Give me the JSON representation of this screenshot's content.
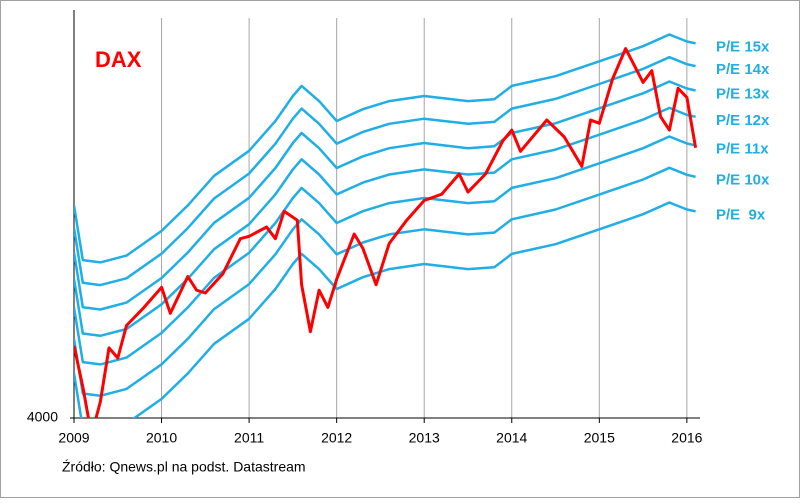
{
  "chart_data": {
    "type": "line",
    "title": "DAX",
    "source": "Źródło: Qnews.pl na podst. Datastream",
    "log_scale": true,
    "grid": "x",
    "xlim": [
      2009,
      2016.15
    ],
    "xticks": [
      2009,
      2010,
      2011,
      2012,
      2013,
      2014,
      2015,
      2016
    ],
    "ylim": [
      4000,
      13500
    ],
    "yticks": [
      4000
    ],
    "series": [
      {
        "name": "P/E 15x",
        "color": "#20aee6",
        "x": [
          2009.0,
          2009.1,
          2009.3,
          2009.6,
          2010.0,
          2010.3,
          2010.6,
          2011.0,
          2011.3,
          2011.5,
          2011.6,
          2011.8,
          2012.0,
          2012.3,
          2012.6,
          2013.0,
          2013.5,
          2013.8,
          2014.0,
          2014.5,
          2015.0,
          2015.5,
          2015.8,
          2016.0,
          2016.1
        ],
        "values": [
          7635,
          6465,
          6420,
          6555,
          7065,
          7635,
          8355,
          9015,
          9870,
          10650,
          10980,
          10485,
          9870,
          10230,
          10485,
          10650,
          10485,
          10545,
          10980,
          11310,
          11835,
          12390,
          12840,
          12570,
          12495
        ]
      },
      {
        "name": "P/E 14x",
        "color": "#20aee6",
        "x": [
          2009.0,
          2009.1,
          2009.3,
          2009.6,
          2010.0,
          2010.3,
          2010.6,
          2011.0,
          2011.3,
          2011.5,
          2011.6,
          2011.8,
          2012.0,
          2012.3,
          2012.6,
          2013.0,
          2013.5,
          2013.8,
          2014.0,
          2014.5,
          2015.0,
          2015.5,
          2015.8,
          2016.0,
          2016.1
        ],
        "values": [
          7126,
          6034,
          5992,
          6118,
          6594,
          7126,
          7798,
          8414,
          9212,
          9940,
          10248,
          9786,
          9212,
          9548,
          9786,
          9940,
          9786,
          9842,
          10248,
          10556,
          11046,
          11564,
          11984,
          11732,
          11662
        ]
      },
      {
        "name": "P/E 13x",
        "color": "#20aee6",
        "x": [
          2009.0,
          2009.1,
          2009.3,
          2009.6,
          2010.0,
          2010.3,
          2010.6,
          2011.0,
          2011.3,
          2011.5,
          2011.6,
          2011.8,
          2012.0,
          2012.3,
          2012.6,
          2013.0,
          2013.5,
          2013.8,
          2014.0,
          2014.5,
          2015.0,
          2015.5,
          2015.8,
          2016.0,
          2016.1
        ],
        "values": [
          6617,
          5603,
          5564,
          5681,
          6123,
          6617,
          7241,
          7813,
          8554,
          9230,
          9516,
          9087,
          8554,
          8866,
          9087,
          9230,
          9087,
          9139,
          9516,
          9802,
          10257,
          10738,
          11128,
          10894,
          10829
        ]
      },
      {
        "name": "P/E 12x",
        "color": "#20aee6",
        "x": [
          2009.0,
          2009.1,
          2009.3,
          2009.6,
          2010.0,
          2010.3,
          2010.6,
          2011.0,
          2011.3,
          2011.5,
          2011.6,
          2011.8,
          2012.0,
          2012.3,
          2012.6,
          2013.0,
          2013.5,
          2013.8,
          2014.0,
          2014.5,
          2015.0,
          2015.5,
          2015.8,
          2016.0,
          2016.1
        ],
        "values": [
          6108,
          5172,
          5136,
          5244,
          5652,
          6108,
          6684,
          7212,
          7896,
          8520,
          8784,
          8388,
          7896,
          8184,
          8388,
          8520,
          8388,
          8436,
          8784,
          9048,
          9468,
          9912,
          10272,
          10056,
          9996
        ]
      },
      {
        "name": "P/E 11x",
        "color": "#20aee6",
        "x": [
          2009.0,
          2009.1,
          2009.3,
          2009.6,
          2010.0,
          2010.3,
          2010.6,
          2011.0,
          2011.3,
          2011.5,
          2011.6,
          2011.8,
          2012.0,
          2012.3,
          2012.6,
          2013.0,
          2013.5,
          2013.8,
          2014.0,
          2014.5,
          2015.0,
          2015.5,
          2015.8,
          2016.0,
          2016.1
        ],
        "values": [
          5599,
          4741,
          4708,
          4807,
          5181,
          5599,
          6127,
          6611,
          7238,
          7810,
          8052,
          7689,
          7238,
          7502,
          7689,
          7810,
          7689,
          7733,
          8052,
          8294,
          8679,
          9086,
          9416,
          9218,
          9163
        ]
      },
      {
        "name": "P/E 10x",
        "color": "#20aee6",
        "x": [
          2009.0,
          2009.1,
          2009.3,
          2009.6,
          2010.0,
          2010.3,
          2010.6,
          2011.0,
          2011.3,
          2011.5,
          2011.6,
          2011.8,
          2012.0,
          2012.3,
          2012.6,
          2013.0,
          2013.5,
          2013.8,
          2014.0,
          2014.5,
          2015.0,
          2015.5,
          2015.8,
          2016.0,
          2016.1
        ],
        "values": [
          5090,
          4310,
          4280,
          4370,
          4710,
          5090,
          5570,
          6010,
          6580,
          7100,
          7320,
          6990,
          6580,
          6820,
          6990,
          7100,
          6990,
          7030,
          7320,
          7540,
          7890,
          8260,
          8560,
          8380,
          8330
        ]
      },
      {
        "name": "P/E  9x",
        "color": "#20aee6",
        "x": [
          2009.0,
          2009.1,
          2009.3,
          2009.6,
          2010.0,
          2010.3,
          2010.6,
          2011.0,
          2011.3,
          2011.5,
          2011.6,
          2011.8,
          2012.0,
          2012.3,
          2012.6,
          2013.0,
          2013.5,
          2013.8,
          2014.0,
          2014.5,
          2015.0,
          2015.5,
          2015.8,
          2016.0,
          2016.1
        ],
        "values": [
          4581,
          3879,
          3852,
          3933,
          4239,
          4581,
          5013,
          5409,
          5922,
          6390,
          6588,
          6291,
          5922,
          6138,
          6291,
          6390,
          6291,
          6327,
          6588,
          6786,
          7101,
          7434,
          7704,
          7542,
          7497
        ]
      },
      {
        "name": "DAX",
        "color": "#ff0000",
        "x": [
          2009.0,
          2009.1,
          2009.2,
          2009.3,
          2009.4,
          2009.5,
          2009.6,
          2009.8,
          2010.0,
          2010.1,
          2010.3,
          2010.4,
          2010.5,
          2010.7,
          2010.9,
          2011.0,
          2011.2,
          2011.3,
          2011.4,
          2011.55,
          2011.6,
          2011.7,
          2011.8,
          2011.9,
          2012.0,
          2012.2,
          2012.3,
          2012.45,
          2012.6,
          2012.8,
          2013.0,
          2013.2,
          2013.4,
          2013.5,
          2013.7,
          2013.9,
          2014.0,
          2014.1,
          2014.4,
          2014.6,
          2014.8,
          2014.9,
          2015.0,
          2015.15,
          2015.3,
          2015.5,
          2015.6,
          2015.7,
          2015.8,
          2015.9,
          2016.0,
          2016.1
        ],
        "values": [
          4980,
          4400,
          3800,
          4200,
          4950,
          4800,
          5300,
          5600,
          5950,
          5500,
          6150,
          5900,
          5850,
          6200,
          6900,
          6950,
          7150,
          6900,
          7500,
          7300,
          6000,
          5200,
          5900,
          5600,
          6100,
          7000,
          6700,
          6000,
          6800,
          7300,
          7750,
          7900,
          8400,
          7950,
          8400,
          9300,
          9600,
          9000,
          9900,
          9400,
          8600,
          9900,
          9800,
          11200,
          12300,
          11100,
          11500,
          10000,
          9600,
          10900,
          10600,
          9100
        ]
      }
    ]
  }
}
